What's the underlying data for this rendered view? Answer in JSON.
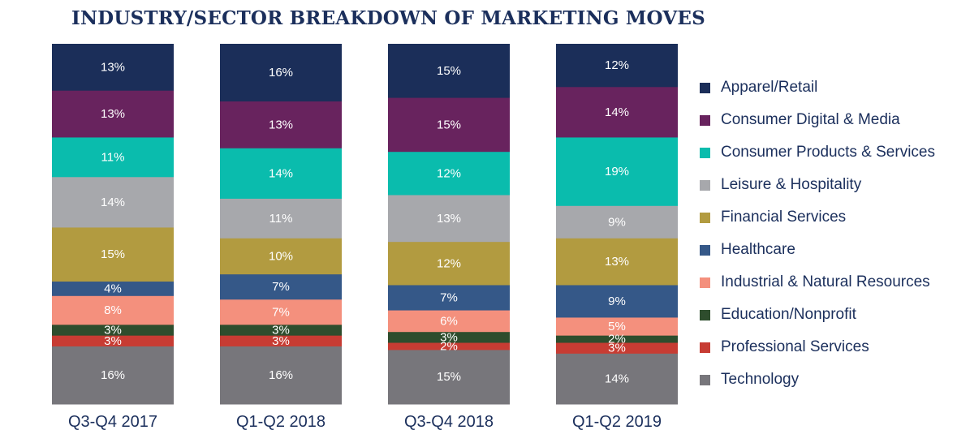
{
  "chart_data": {
    "type": "bar",
    "stacked": true,
    "title": "INDUSTRY/SECTOR BREAKDOWN OF MARKETING MOVES",
    "categories": [
      "Q3-Q4 2017",
      "Q1-Q2 2018",
      "Q3-Q4 2018",
      "Q1-Q2 2019"
    ],
    "legend_position": "right",
    "series": [
      {
        "name": "Apparel/Retail",
        "color": "#1b2e59",
        "values": [
          13,
          16,
          15,
          12
        ],
        "labels": [
          "13%",
          "16%",
          "15%",
          "12%"
        ]
      },
      {
        "name": "Consumer Digital & Media",
        "color": "#68235e",
        "values": [
          13,
          13,
          15,
          14
        ],
        "labels": [
          "13%",
          "13%",
          "15%",
          "14%"
        ]
      },
      {
        "name": "Consumer Products & Services",
        "color": "#0abcad",
        "values": [
          11,
          14,
          12,
          19
        ],
        "labels": [
          "11%",
          "14%",
          "12%",
          "19%"
        ]
      },
      {
        "name": "Leisure & Hospitality",
        "color": "#a7a8ac",
        "values": [
          14,
          11,
          13,
          9
        ],
        "labels": [
          "14%",
          "11%",
          "13%",
          "9%"
        ]
      },
      {
        "name": "Financial Services",
        "color": "#b29b40",
        "values": [
          15,
          10,
          12,
          13
        ],
        "labels": [
          "15%",
          "10%",
          "12%",
          "13%"
        ]
      },
      {
        "name": "Healthcare",
        "color": "#355888",
        "values": [
          4,
          7,
          7,
          9
        ],
        "labels": [
          "4%",
          "7%",
          "7%",
          "9%"
        ]
      },
      {
        "name": "Industrial & Natural Resources",
        "color": "#f4907d",
        "values": [
          8,
          7,
          6,
          5
        ],
        "labels": [
          "8%",
          "7%",
          "6%",
          "5%"
        ]
      },
      {
        "name": "Education/Nonprofit",
        "color": "#2e4d2d",
        "values": [
          3,
          3,
          3,
          2
        ],
        "labels": [
          "3%",
          "3%",
          "3%",
          "2%"
        ]
      },
      {
        "name": "Professional Services",
        "color": "#c73c33",
        "values": [
          3,
          3,
          2,
          3
        ],
        "labels": [
          "3%",
          "3%",
          "2%",
          "3%"
        ]
      },
      {
        "name": "Technology",
        "color": "#77767b",
        "values": [
          16,
          16,
          15,
          14
        ],
        "labels": [
          "16%",
          "16%",
          "15%",
          "14%"
        ]
      }
    ]
  }
}
